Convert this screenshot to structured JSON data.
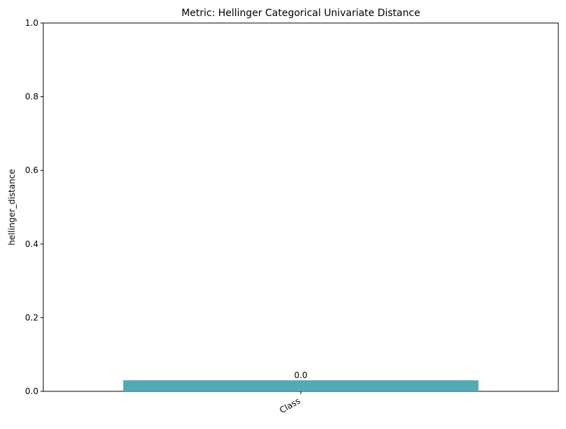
{
  "chart_data": {
    "type": "bar",
    "title": "Metric: Hellinger Categorical Univariate Distance",
    "xlabel": "",
    "ylabel": "hellinger_distance",
    "categories": [
      "Class"
    ],
    "values": [
      0.0
    ],
    "bar_labels": [
      "0.0"
    ],
    "ylim": [
      0,
      1
    ],
    "yticks": [
      0.0,
      0.2,
      0.4,
      0.6,
      0.8,
      1.0
    ],
    "ytick_labels": [
      "0.0",
      "0.2",
      "0.4",
      "0.6",
      "0.8",
      "1.0"
    ],
    "bar_color": "#53a9b4",
    "grid": false,
    "legend": "none"
  }
}
